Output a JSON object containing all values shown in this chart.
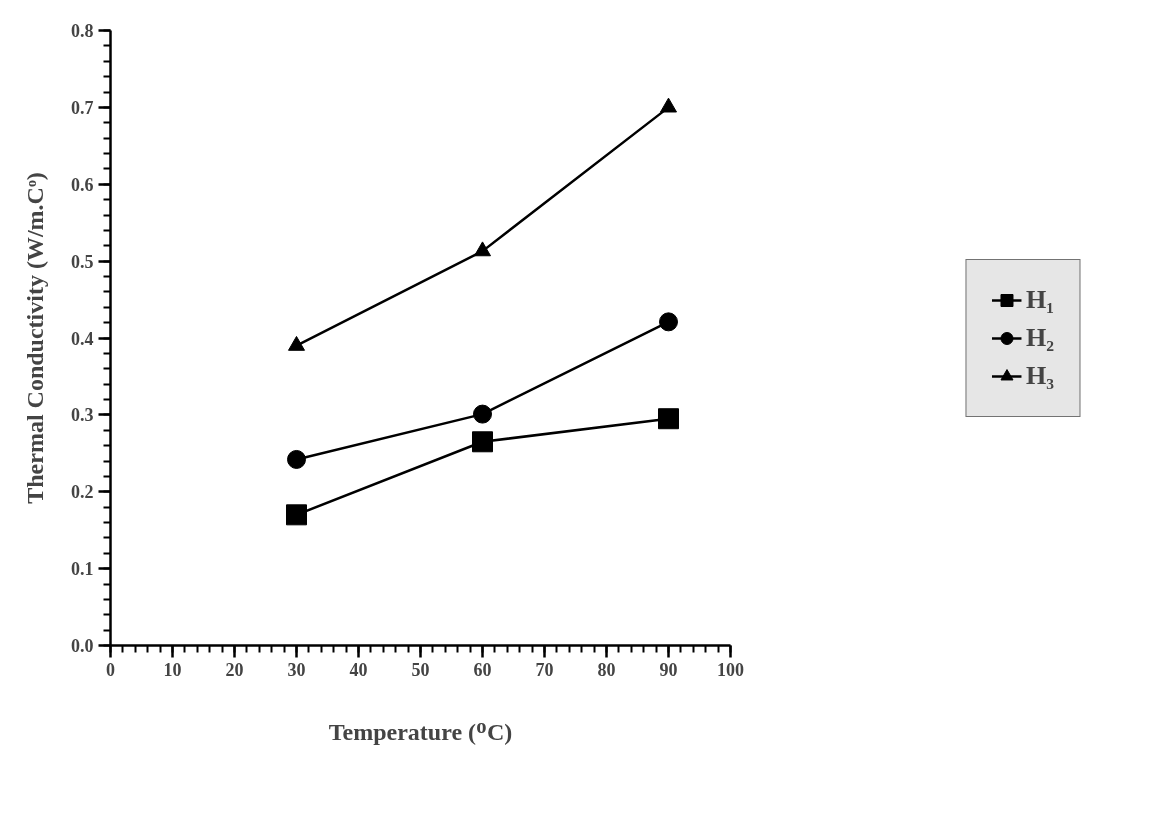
{
  "chart_data": {
    "type": "line",
    "xlabel": "Temperature (ᴼC)",
    "ylabel": "Thermal Conductivity (W/m.Cᵒ)",
    "x": [
      30,
      60,
      90
    ],
    "series": [
      {
        "name": "H₁",
        "color": "#000000",
        "marker": "square",
        "values": [
          0.17,
          0.265,
          0.295
        ]
      },
      {
        "name": "H₂",
        "color": "#000000",
        "marker": "circle",
        "values": [
          0.242,
          0.301,
          0.421
        ]
      },
      {
        "name": "H₃",
        "color": "#000000",
        "marker": "triangle",
        "values": [
          0.39,
          0.513,
          0.7
        ]
      }
    ],
    "xlim": [
      0,
      100
    ],
    "xticks": [
      0,
      10,
      20,
      30,
      40,
      50,
      60,
      70,
      80,
      90,
      100
    ],
    "ylim": [
      0,
      0.8
    ],
    "yticks": [
      {
        "value": 0,
        "label": "0.0"
      },
      {
        "value": 0.1,
        "label": "0.1"
      },
      {
        "value": 0.2,
        "label": "0.2"
      },
      {
        "value": 0.3,
        "label": "0.3"
      },
      {
        "value": 0.4,
        "label": "0.4"
      },
      {
        "value": 0.5,
        "label": "0.5"
      },
      {
        "value": 0.6,
        "label": "0.6"
      },
      {
        "value": 0.7,
        "label": "0.7"
      },
      {
        "value": 0.8,
        "label": "0.8"
      }
    ],
    "grid": false,
    "legend": "right",
    "line_style": "solid"
  }
}
